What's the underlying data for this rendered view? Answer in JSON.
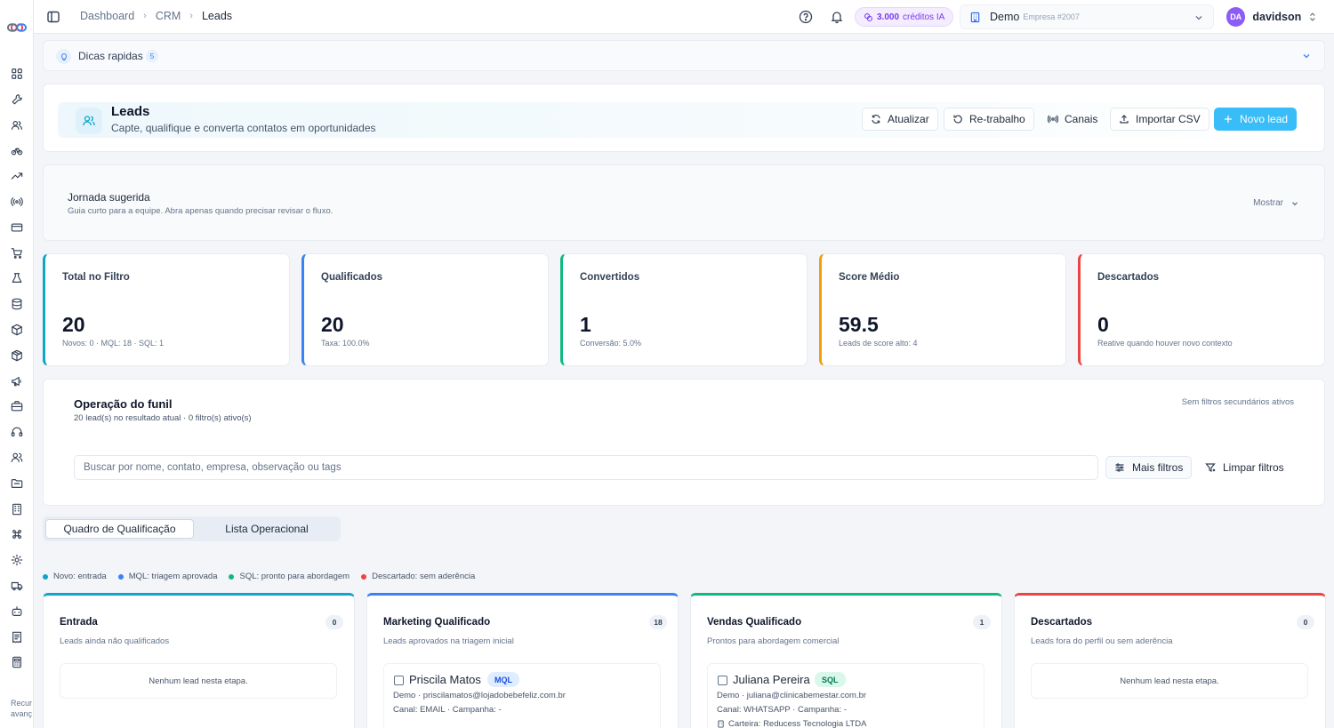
{
  "sidebar": {
    "footer_text": [
      "Recur",
      "avanç"
    ],
    "icons": [
      "grid-icon",
      "wrench-icon",
      "users-icon",
      "bike-icon",
      "trending-icon",
      "radio-icon",
      "card-icon",
      "cart-icon",
      "lab-icon",
      "database-icon",
      "box-icon",
      "package-icon",
      "megaphone-icon",
      "briefcase-icon",
      "headset-icon",
      "team-icon",
      "folder-icon",
      "building-icon",
      "command-icon",
      "settings-icon",
      "truck-icon",
      "bot-icon",
      "receipt-icon",
      "calculator-icon"
    ]
  },
  "topbar": {
    "breadcrumb": [
      "Dashboard",
      "CRM",
      "Leads"
    ],
    "credits_amount": "3.000",
    "credits_label": "créditos IA",
    "org_name": "Demo",
    "org_sub": "Empresa #2007",
    "user_initials": "DA",
    "user_name": "davidson"
  },
  "tips": {
    "label": "Dicas rapidas",
    "count": "5"
  },
  "header": {
    "title": "Leads",
    "subtitle": "Capte, qualifique e converta contatos em oportunidades",
    "buttons": {
      "refresh": "Atualizar",
      "rework": "Re-trabalho",
      "channels": "Canais",
      "import": "Importar CSV",
      "new": "Novo lead"
    }
  },
  "journey": {
    "title": "Jornada sugerida",
    "subtitle": "Guia curto para a equipe. Abra apenas quando precisar revisar o fluxo.",
    "toggle": "Mostrar"
  },
  "stats": [
    {
      "label": "Total no Filtro",
      "value": "20",
      "sub": "Novos: 0 · MQL: 18 · SQL: 1",
      "color": "#0ea5c9"
    },
    {
      "label": "Qualificados",
      "value": "20",
      "sub": "Taxa: 100.0%",
      "color": "#3b82f6"
    },
    {
      "label": "Convertidos",
      "value": "1",
      "sub": "Conversão: 5.0%",
      "color": "#10b981"
    },
    {
      "label": "Score Médio",
      "value": "59.5",
      "sub": "Leads de score alto: 4",
      "color": "#f59e0b"
    },
    {
      "label": "Descartados",
      "value": "0",
      "sub": "Reative quando houver novo contexto",
      "color": "#ef4444"
    }
  ],
  "ops": {
    "title": "Operação do funil",
    "subtitle": "20 lead(s) no resultado atual · 0 filtro(s) ativo(s)",
    "right_note": "Sem filtros secundários ativos",
    "search_placeholder": "Buscar por nome, contato, empresa, observação ou tags",
    "more_filters": "Mais filtros",
    "clear_filters": "Limpar filtros"
  },
  "tabs": {
    "board": "Quadro de Qualificação",
    "list": "Lista Operacional",
    "active": "board"
  },
  "legend": [
    {
      "label": "Novo: entrada",
      "color": "#0ea5c9"
    },
    {
      "label": "MQL: triagem aprovada",
      "color": "#3b82f6"
    },
    {
      "label": "SQL: pronto para abordagem",
      "color": "#10b981"
    },
    {
      "label": "Descartado: sem aderência",
      "color": "#ef4444"
    }
  ],
  "columns": [
    {
      "title": "Entrada",
      "count": "0",
      "subtitle": "Leads ainda não qualificados",
      "empty": "Nenhum lead nesta etapa.",
      "color": "#0ea5c9"
    },
    {
      "title": "Marketing Qualificado",
      "count": "18",
      "subtitle": "Leads aprovados na triagem inicial",
      "color": "#3b82f6",
      "lead": {
        "name": "Priscila Matos",
        "tag": "MQL",
        "line1": "Demo · priscilamatos@lojadobebefeliz.com.br",
        "line2": "Canal: EMAIL · Campanha: -",
        "line3": ""
      }
    },
    {
      "title": "Vendas Qualificado",
      "count": "1",
      "subtitle": "Prontos para abordagem comercial",
      "color": "#10b981",
      "lead": {
        "name": "Juliana Pereira",
        "tag": "SQL",
        "line1": "Demo · juliana@clinicabemestar.com.br",
        "line2": "Canal: WHATSAPP · Campanha: -",
        "line3": "Carteira: Reducess Tecnologia LTDA"
      }
    },
    {
      "title": "Descartados",
      "count": "0",
      "subtitle": "Leads fora do perfil ou sem aderência",
      "empty": "Nenhum lead nesta etapa.",
      "color": "#ef4444"
    }
  ]
}
